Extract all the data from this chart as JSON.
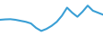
{
  "x": [
    0,
    1,
    2,
    3,
    4,
    5,
    6,
    7,
    8,
    9,
    10,
    11,
    12,
    13,
    14,
    15,
    16,
    17,
    18,
    19,
    20
  ],
  "y": [
    23,
    23.2,
    23.3,
    23.0,
    22.5,
    22.0,
    21.2,
    19.0,
    17.5,
    18.5,
    20.0,
    22.0,
    25.0,
    29.0,
    26.5,
    24.5,
    27.0,
    30.0,
    27.5,
    26.5,
    25.5
  ],
  "line_color": "#3a9fd5",
  "linewidth": 1.5,
  "background_color": "#ffffff",
  "ylim": [
    15,
    33
  ]
}
